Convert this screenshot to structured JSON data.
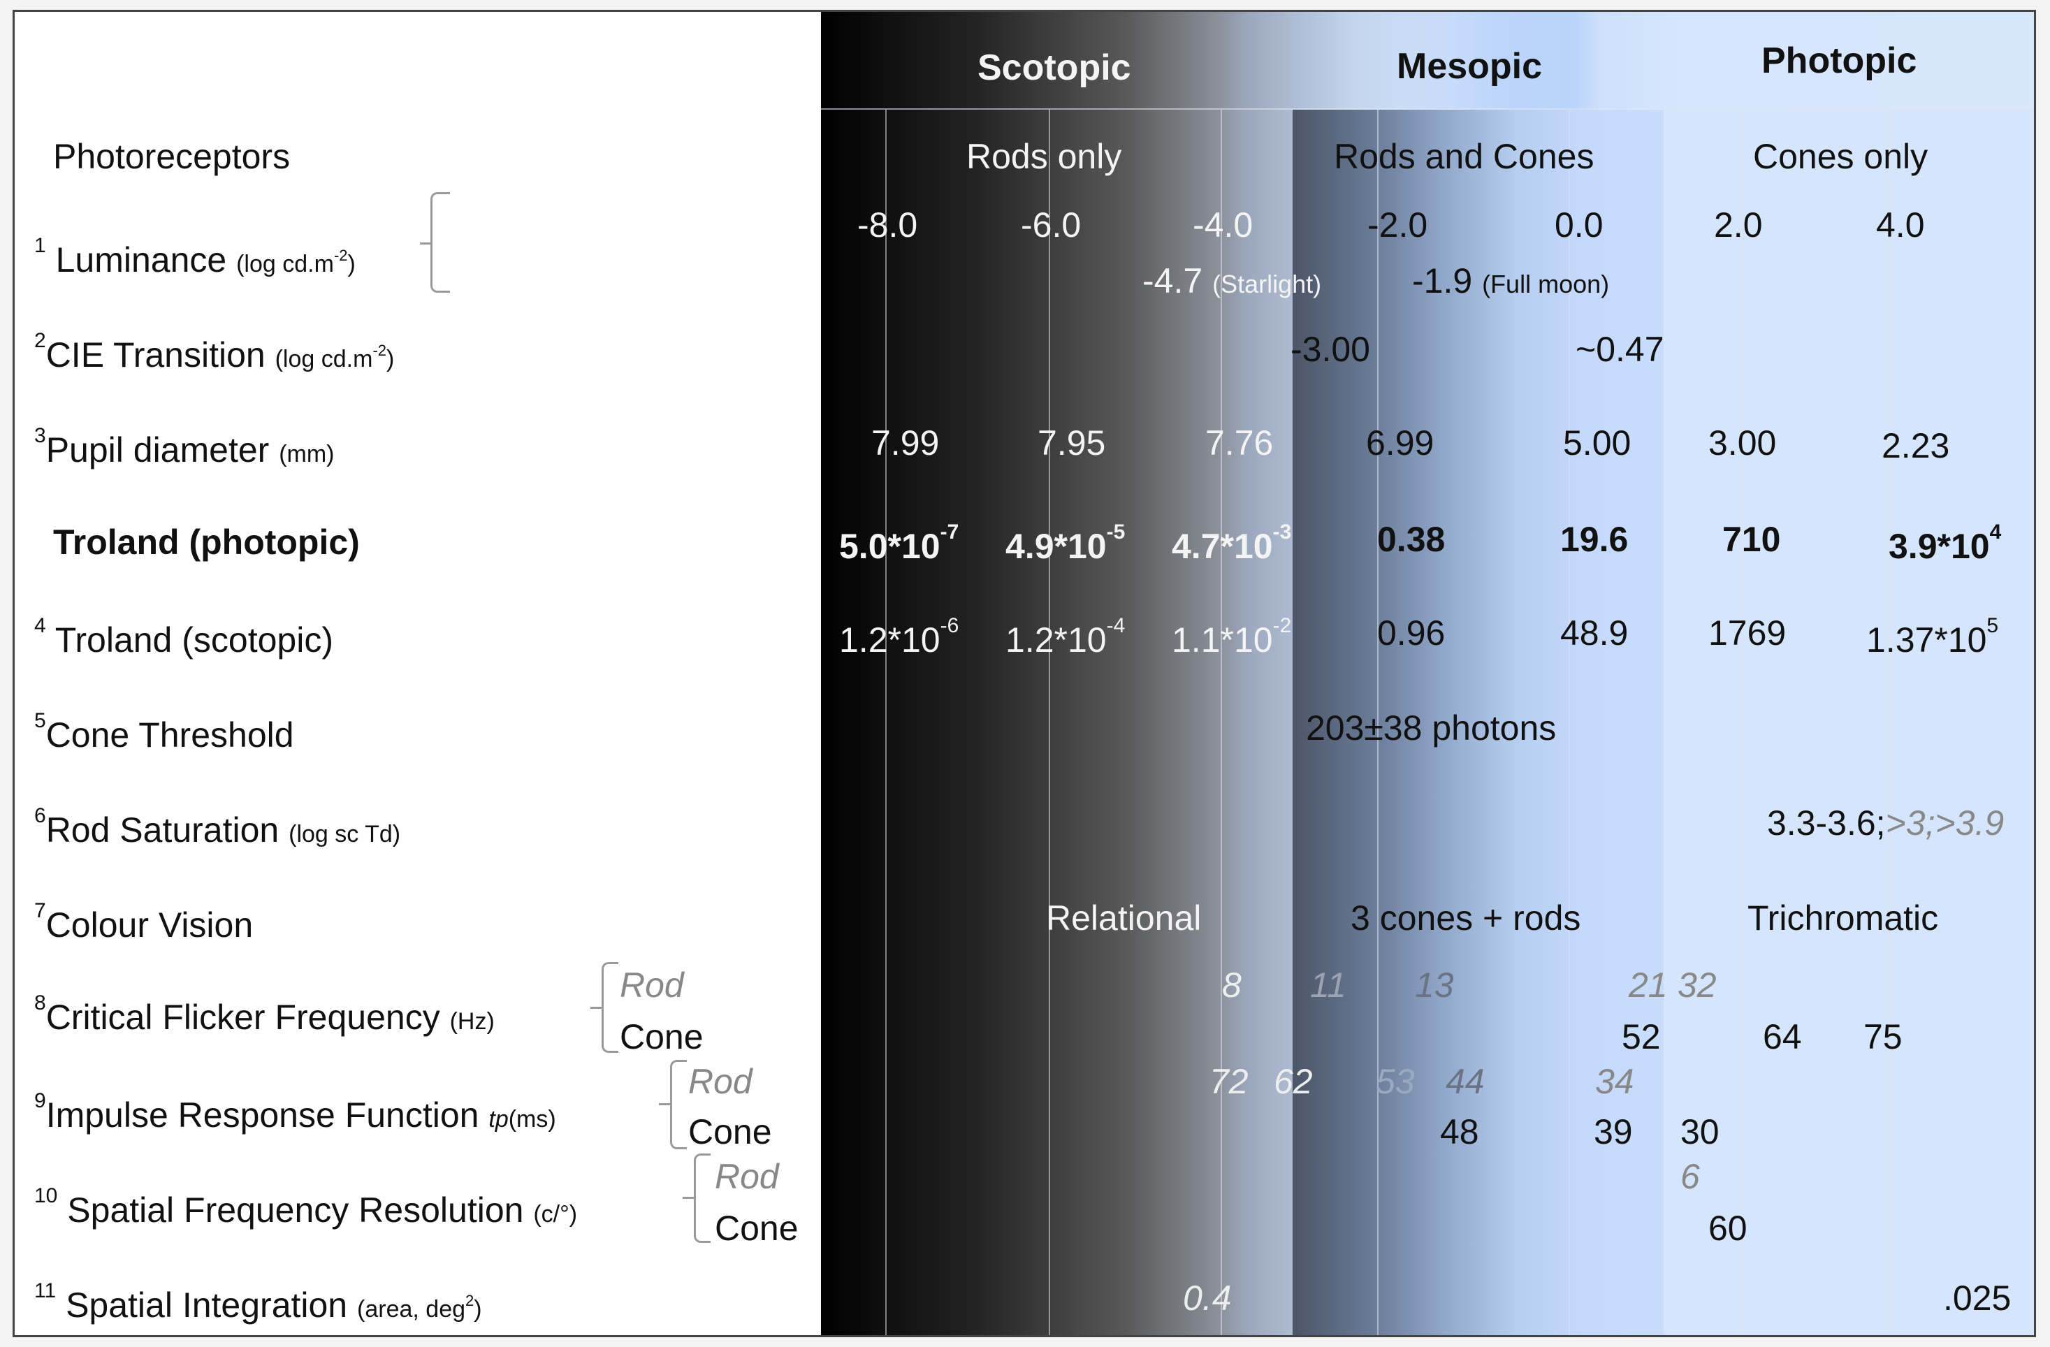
{
  "header": {
    "scotopic": "Scotopic",
    "mesopic": "Mesopic",
    "photopic": "Photopic"
  },
  "rows": {
    "photoreceptors": {
      "label": "Photoreceptors",
      "rods_only": "Rods only",
      "rods_and_cones": "Rods and Cones",
      "cones_only": "Cones only"
    },
    "luminance": {
      "num": "1",
      "label": "Luminance",
      "unit_pre": "(log cd.m",
      "unit_exp": "-2",
      "unit_post": ")",
      "values": [
        "-8.0",
        "-6.0",
        "-4.0",
        "-2.0",
        "0.0",
        "2.0",
        "4.0"
      ],
      "starlight_value": "-4.7",
      "starlight_note": "(Starlight)",
      "fullmoon_value": "-1.9",
      "fullmoon_note": "(Full moon)"
    },
    "cie": {
      "num": "2",
      "label": "CIE Transition",
      "unit_pre": "(log cd.m",
      "unit_exp": "-2",
      "unit_post": ")",
      "values": [
        "-3.00",
        "~0.47"
      ]
    },
    "pupil": {
      "num": "3",
      "label": "Pupil diameter",
      "unit": "(mm)",
      "values": [
        "7.99",
        "7.95",
        "7.76",
        "6.99",
        "5.00",
        "3.00",
        "2.23"
      ]
    },
    "troland_photopic": {
      "label": "Troland (photopic)",
      "values": [
        {
          "base": "5.0*10",
          "exp": "-7"
        },
        {
          "base": "4.9*10",
          "exp": "-5"
        },
        {
          "base": "4.7*10",
          "exp": "-3"
        },
        {
          "base": "0.38",
          "exp": ""
        },
        {
          "base": "19.6",
          "exp": ""
        },
        {
          "base": "710",
          "exp": ""
        },
        {
          "base": "3.9*10",
          "exp": "4"
        }
      ]
    },
    "troland_scotopic": {
      "num": "4",
      "label": "Troland (scotopic)",
      "values": [
        {
          "base": "1.2*10",
          "exp": "-6"
        },
        {
          "base": "1.2*10",
          "exp": "-4"
        },
        {
          "base": "1.1*10",
          "exp": "-2"
        },
        {
          "base": "0.96",
          "exp": ""
        },
        {
          "base": "48.9",
          "exp": ""
        },
        {
          "base": "1769",
          "exp": ""
        },
        {
          "base": "1.37*10",
          "exp": "5"
        }
      ]
    },
    "cone_threshold": {
      "num": "5",
      "label": "Cone Threshold",
      "value": "203±38 photons"
    },
    "rod_saturation": {
      "num": "6",
      "label": "Rod Saturation",
      "unit": "(log sc Td)",
      "value_main": "3.3-3.6;",
      "value_gray": ">3;>3.9"
    },
    "colour_vision": {
      "num": "7",
      "label": "Colour Vision",
      "values": [
        "Relational",
        "3 cones + rods",
        "Trichromatic"
      ]
    },
    "flicker": {
      "num": "8",
      "label": "Critical Flicker Frequency",
      "unit": "(Hz)",
      "rod_label": "Rod",
      "cone_label": "Cone",
      "rod_values": [
        "8",
        "11",
        "13",
        "21",
        "32"
      ],
      "cone_values": [
        "52",
        "64",
        "75"
      ]
    },
    "impulse": {
      "num": "9",
      "label": "Impulse Response Function",
      "unit_tp": "tp",
      "unit": "(ms)",
      "rod_label": "Rod",
      "cone_label": "Cone",
      "rod_values": [
        "72",
        "62",
        "53",
        "44",
        "34"
      ],
      "cone_values": [
        "48",
        "39",
        "30"
      ]
    },
    "spatial_freq": {
      "num": "10",
      "label": "Spatial Frequency Resolution",
      "unit": "(c/°)",
      "rod_label": "Rod",
      "cone_label": "Cone",
      "rod_values": [
        "6"
      ],
      "cone_values": [
        "60"
      ]
    },
    "spatial_int": {
      "num": "11",
      "label": "Spatial Integration",
      "unit_pre": "(area, deg",
      "unit_exp": "2",
      "unit_post": ")",
      "values": [
        "0.4",
        ".025"
      ]
    }
  },
  "colors": {
    "scotopic_dark": "#000000",
    "mesopic_blue": "#c4d9fb",
    "photopic_light": "#d5e6fc",
    "white_text": "#f4f4f4",
    "gray_italic": "#888888"
  }
}
